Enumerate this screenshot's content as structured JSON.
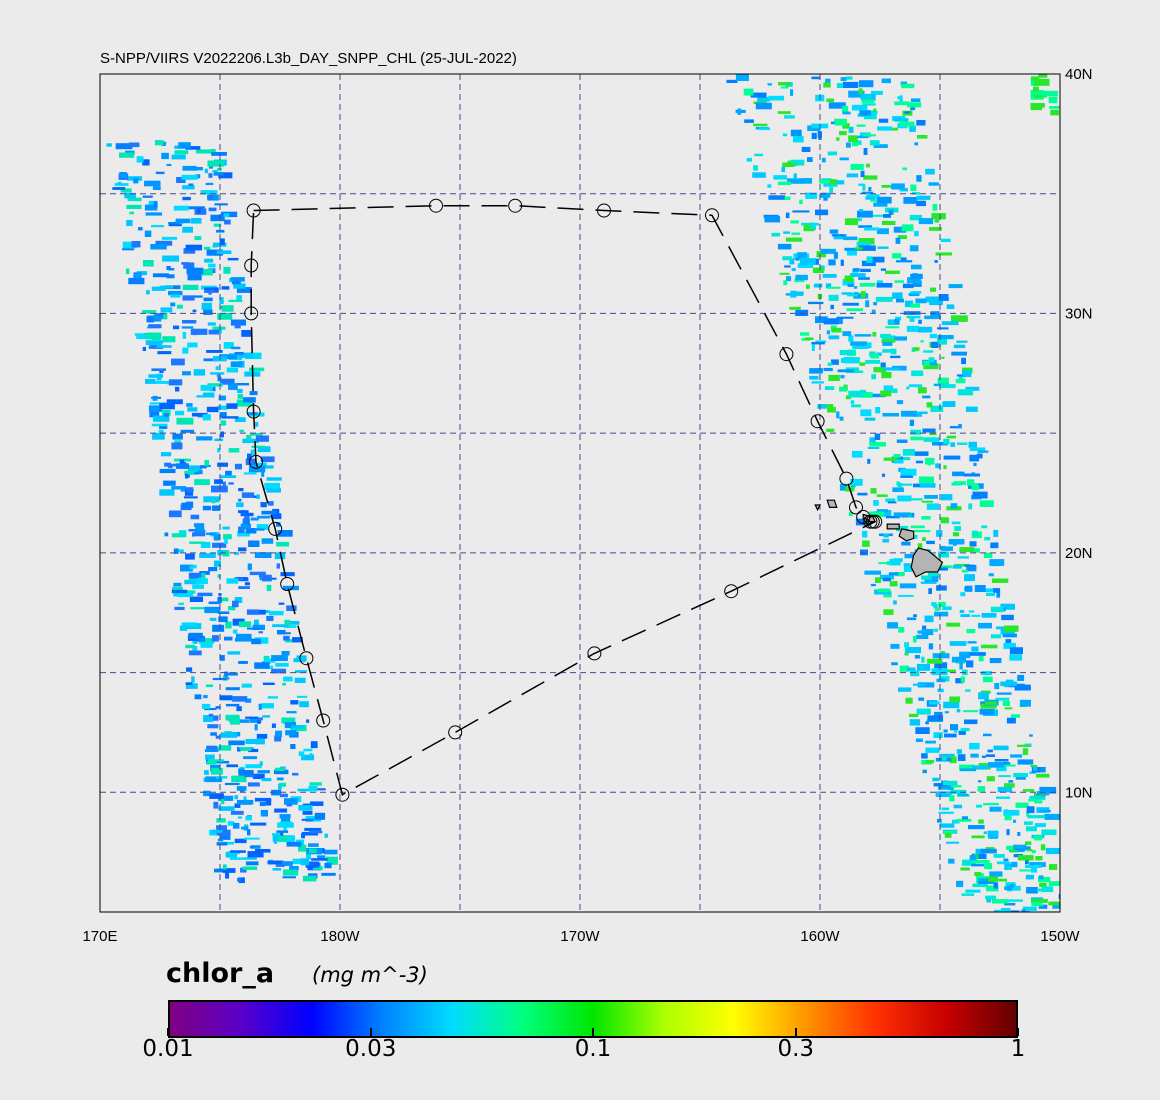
{
  "title": "S-NPP/VIIRS V2022206.L3b_DAY_SNPP_CHL (25-JUL-2022)",
  "map": {
    "lon_range": [
      170,
      210
    ],
    "lat_range": [
      5,
      40
    ],
    "lon_ticks": [
      {
        "value": 170,
        "label": "170E"
      },
      {
        "value": 180,
        "label": "180W"
      },
      {
        "value": 190,
        "label": "170W"
      },
      {
        "value": 200,
        "label": "160W"
      },
      {
        "value": 210,
        "label": "150W"
      }
    ],
    "lat_ticks": [
      {
        "value": 40,
        "label": "40N"
      },
      {
        "value": 30,
        "label": "30N"
      },
      {
        "value": 20,
        "label": "20N"
      },
      {
        "value": 10,
        "label": "10N"
      }
    ],
    "gridlines_lon": [
      175,
      180,
      185,
      190,
      195,
      200,
      205
    ],
    "gridlines_lat": [
      10,
      15,
      20,
      25,
      30,
      35
    ],
    "grid_color": "#4a4a8c",
    "land_color": "#b4b4b4",
    "route_markers": [
      [
        176.4,
        34.3
      ],
      [
        184.0,
        34.5
      ],
      [
        187.3,
        34.5
      ],
      [
        191.0,
        34.3
      ],
      [
        195.5,
        34.1
      ],
      [
        198.6,
        28.3
      ],
      [
        199.9,
        25.5
      ],
      [
        201.1,
        23.1
      ],
      [
        201.5,
        21.9
      ],
      [
        201.8,
        21.5
      ],
      [
        202.1,
        21.3
      ],
      [
        202.2,
        21.3
      ],
      [
        202.3,
        21.3
      ],
      [
        196.3,
        18.4
      ],
      [
        190.6,
        15.8
      ],
      [
        184.8,
        12.5
      ],
      [
        180.1,
        9.9
      ],
      [
        179.3,
        13.0
      ],
      [
        178.6,
        15.6
      ],
      [
        177.8,
        18.7
      ],
      [
        177.3,
        21.0
      ],
      [
        176.5,
        23.8
      ],
      [
        176.4,
        25.9
      ],
      [
        176.3,
        30.0
      ],
      [
        176.3,
        32.0
      ]
    ],
    "islands": [
      {
        "name": "hawaii",
        "coords": [
          [
            204.1,
            20.2
          ],
          [
            204.5,
            20.1
          ],
          [
            205.1,
            19.6
          ],
          [
            204.9,
            19.2
          ],
          [
            204.4,
            19.2
          ],
          [
            204.0,
            19.0
          ],
          [
            203.8,
            19.4
          ],
          [
            203.9,
            19.9
          ]
        ]
      },
      {
        "name": "maui",
        "coords": [
          [
            203.4,
            21.0
          ],
          [
            203.9,
            20.9
          ],
          [
            203.9,
            20.6
          ],
          [
            203.6,
            20.5
          ],
          [
            203.3,
            20.7
          ]
        ]
      },
      {
        "name": "molokai",
        "coords": [
          [
            202.8,
            21.2
          ],
          [
            203.3,
            21.2
          ],
          [
            203.3,
            21.0
          ],
          [
            202.8,
            21.0
          ]
        ]
      },
      {
        "name": "oahu",
        "coords": [
          [
            201.8,
            21.6
          ],
          [
            202.2,
            21.5
          ],
          [
            202.3,
            21.3
          ],
          [
            202.0,
            21.2
          ],
          [
            201.8,
            21.4
          ]
        ]
      },
      {
        "name": "kauai",
        "coords": [
          [
            200.3,
            22.2
          ],
          [
            200.6,
            22.2
          ],
          [
            200.7,
            21.9
          ],
          [
            200.4,
            21.9
          ]
        ]
      },
      {
        "name": "niihau",
        "coords": [
          [
            199.8,
            22.0
          ],
          [
            200.0,
            22.0
          ],
          [
            199.9,
            21.8
          ]
        ]
      }
    ]
  },
  "colorbar": {
    "variable": "chlor_a",
    "units": "(mg m^-3)",
    "range": [
      0.01,
      1
    ],
    "scale": "log",
    "ticks": [
      {
        "value": 0.01,
        "label": "0.01"
      },
      {
        "value": 0.03,
        "label": "0.03"
      },
      {
        "value": 0.1,
        "label": "0.1"
      },
      {
        "value": 0.3,
        "label": "0.3"
      },
      {
        "value": 1,
        "label": "1"
      }
    ],
    "colors": [
      "#800080",
      "#5a00c8",
      "#0000ff",
      "#0080ff",
      "#00dcff",
      "#00ff80",
      "#00e600",
      "#aaff00",
      "#ffff00",
      "#ff9600",
      "#ff3200",
      "#c80000",
      "#640000"
    ]
  }
}
